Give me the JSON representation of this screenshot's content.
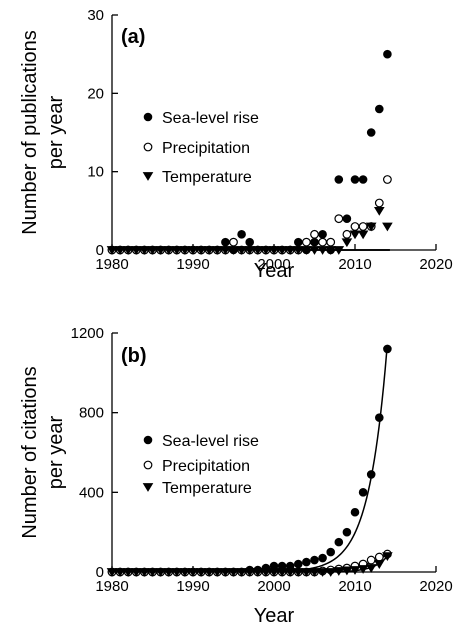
{
  "chart_data": [
    {
      "type": "scatter",
      "panel_label": "(a)",
      "xlabel": "Year",
      "ylabel_lines": [
        "Number of publications",
        "per year"
      ],
      "xlim": [
        1980,
        2020
      ],
      "ylim": [
        0,
        30
      ],
      "xticks": [
        1980,
        1990,
        2000,
        2010,
        2020
      ],
      "yticks": [
        0,
        10,
        20,
        30
      ],
      "x_tick_labels": [
        "1980",
        "1990",
        "2000",
        "2010",
        "2020"
      ],
      "y_tick_labels": [
        "0",
        "10",
        "20",
        "30"
      ],
      "legend_position": "left-middle",
      "series": [
        {
          "name": "Sea-level rise",
          "marker": "filled-circle",
          "x": [
            1980,
            1981,
            1982,
            1983,
            1984,
            1985,
            1986,
            1987,
            1988,
            1989,
            1990,
            1991,
            1992,
            1993,
            1994,
            1995,
            1996,
            1997,
            1998,
            1999,
            2000,
            2001,
            2002,
            2003,
            2004,
            2005,
            2006,
            2007,
            2008,
            2009,
            2010,
            2011,
            2012,
            2013,
            2014
          ],
          "y": [
            0,
            0,
            0,
            0,
            0,
            0,
            0,
            0,
            0,
            0,
            0,
            0,
            0,
            0,
            1,
            0,
            2,
            1,
            0,
            0,
            0,
            0,
            0,
            1,
            0,
            1,
            2,
            0,
            9,
            4,
            9,
            9,
            15,
            18,
            25
          ],
          "fit": {
            "a": 1.9e-10,
            "b": 0.5125,
            "x0": 1980
          }
        },
        {
          "name": "Precipitation",
          "marker": "open-circle",
          "x": [
            1980,
            1981,
            1982,
            1983,
            1984,
            1985,
            1986,
            1987,
            1988,
            1989,
            1990,
            1991,
            1992,
            1993,
            1994,
            1995,
            1996,
            1997,
            1998,
            1999,
            2000,
            2001,
            2002,
            2003,
            2004,
            2005,
            2006,
            2007,
            2008,
            2009,
            2010,
            2011,
            2012,
            2013,
            2014
          ],
          "y": [
            0,
            0,
            0,
            0,
            0,
            0,
            0,
            0,
            0,
            0,
            0,
            0,
            0,
            0,
            0,
            1,
            0,
            0,
            0,
            0,
            0,
            0,
            0,
            0,
            1,
            2,
            1,
            1,
            4,
            2,
            3,
            3,
            3,
            6,
            9
          ],
          "fit": {
            "a": 5e-08,
            "b": 0.33,
            "x0": 1980
          }
        },
        {
          "name": "Temperature",
          "marker": "filled-down-triangle",
          "x": [
            1980,
            1981,
            1982,
            1983,
            1984,
            1985,
            1986,
            1987,
            1988,
            1989,
            1990,
            1991,
            1992,
            1993,
            1994,
            1995,
            1996,
            1997,
            1998,
            1999,
            2000,
            2001,
            2002,
            2003,
            2004,
            2005,
            2006,
            2007,
            2008,
            2009,
            2010,
            2011,
            2012,
            2013,
            2014
          ],
          "y": [
            0,
            0,
            0,
            0,
            0,
            0,
            0,
            0,
            0,
            0,
            0,
            0,
            0,
            0,
            0,
            0,
            0,
            0,
            0,
            0,
            0,
            0,
            0,
            0,
            0,
            0,
            0,
            0,
            0,
            1,
            2,
            2,
            3,
            5,
            3
          ],
          "fit": {
            "a": 4e-07,
            "b": 0.263,
            "x0": 1980
          }
        }
      ]
    },
    {
      "type": "scatter",
      "panel_label": "(b)",
      "xlabel": "Year",
      "ylabel_lines": [
        "Number of citations",
        "per year"
      ],
      "xlim": [
        1980,
        2020
      ],
      "ylim": [
        0,
        1200
      ],
      "xticks": [
        1980,
        1990,
        2000,
        2010,
        2020
      ],
      "yticks": [
        0,
        400,
        800,
        1200
      ],
      "x_tick_labels": [
        "1980",
        "1990",
        "2000",
        "2010",
        "2020"
      ],
      "y_tick_labels": [
        "0",
        "400",
        "800",
        "1200"
      ],
      "legend_position": "left-middle",
      "series": [
        {
          "name": "Sea-level rise",
          "marker": "filled-circle",
          "x": [
            1980,
            1981,
            1982,
            1983,
            1984,
            1985,
            1986,
            1987,
            1988,
            1989,
            1990,
            1991,
            1992,
            1993,
            1994,
            1995,
            1996,
            1997,
            1998,
            1999,
            2000,
            2001,
            2002,
            2003,
            2004,
            2005,
            2006,
            2007,
            2008,
            2009,
            2010,
            2011,
            2012,
            2013,
            2014
          ],
          "y": [
            0,
            0,
            0,
            0,
            0,
            0,
            0,
            0,
            0,
            0,
            0,
            0,
            0,
            0,
            0,
            0,
            0,
            10,
            10,
            20,
            30,
            30,
            30,
            40,
            50,
            60,
            70,
            100,
            150,
            200,
            300,
            400,
            490,
            775,
            1120
          ],
          "fit": {
            "a": 0.00035,
            "b": 0.4413,
            "x0": 1980
          }
        },
        {
          "name": "Precipitation",
          "marker": "open-circle",
          "x": [
            1980,
            1981,
            1982,
            1983,
            1984,
            1985,
            1986,
            1987,
            1988,
            1989,
            1990,
            1991,
            1992,
            1993,
            1994,
            1995,
            1996,
            1997,
            1998,
            1999,
            2000,
            2001,
            2002,
            2003,
            2004,
            2005,
            2006,
            2007,
            2008,
            2009,
            2010,
            2011,
            2012,
            2013,
            2014
          ],
          "y": [
            0,
            0,
            0,
            0,
            0,
            0,
            0,
            0,
            0,
            0,
            0,
            0,
            0,
            0,
            0,
            0,
            0,
            0,
            0,
            0,
            0,
            0,
            0,
            0,
            0,
            0,
            5,
            10,
            15,
            20,
            30,
            40,
            60,
            75,
            90
          ],
          "fit": {
            "a": 0.004,
            "b": 0.294,
            "x0": 1980
          }
        },
        {
          "name": "Temperature",
          "marker": "filled-down-triangle",
          "x": [
            1980,
            1981,
            1982,
            1983,
            1984,
            1985,
            1986,
            1987,
            1988,
            1989,
            1990,
            1991,
            1992,
            1993,
            1994,
            1995,
            1996,
            1997,
            1998,
            1999,
            2000,
            2001,
            2002,
            2003,
            2004,
            2005,
            2006,
            2007,
            2008,
            2009,
            2010,
            2011,
            2012,
            2013,
            2014
          ],
          "y": [
            0,
            0,
            0,
            0,
            0,
            0,
            0,
            0,
            0,
            0,
            0,
            0,
            0,
            0,
            0,
            0,
            0,
            0,
            0,
            0,
            0,
            0,
            0,
            0,
            0,
            0,
            0,
            0,
            5,
            8,
            10,
            15,
            20,
            40,
            80
          ],
          "fit": {
            "a": 7.5e-08,
            "b": 0.6112,
            "x0": 1980
          }
        }
      ]
    }
  ]
}
